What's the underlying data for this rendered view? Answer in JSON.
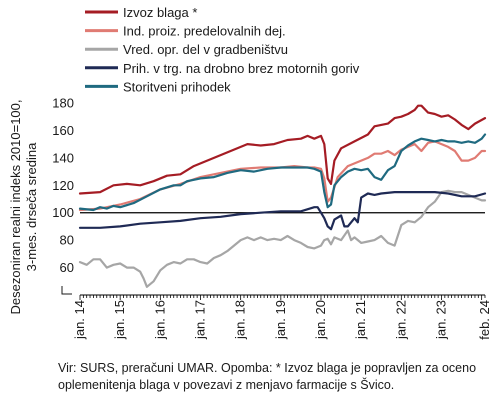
{
  "chart_data": {
    "type": "line",
    "ylabel_lines": [
      "Desezoniran realni indeks 2010=100,",
      "3-mes. drseča sredina"
    ],
    "ylim": [
      40,
      180
    ],
    "yticks": [
      60,
      80,
      100,
      120,
      140,
      160,
      180
    ],
    "y_axis_break": true,
    "reference_line": 100,
    "x_ticks": [
      "jan. 14",
      "jan. 15",
      "jan. 16",
      "jan. 17",
      "jan. 18",
      "jan. 19",
      "jan. 20",
      "jan. 21",
      "jan. 22",
      "jan. 23",
      "feb. 24"
    ],
    "x_tick_months": [
      0,
      12,
      24,
      36,
      48,
      60,
      72,
      84,
      96,
      108,
      121
    ],
    "x_range_months": [
      0,
      121
    ],
    "legend_position": "top",
    "grid": false,
    "series": [
      {
        "name": "Izvoz blaga *",
        "color": "#a51c24",
        "points": [
          [
            0,
            114
          ],
          [
            6,
            115
          ],
          [
            10,
            120
          ],
          [
            14,
            121
          ],
          [
            18,
            120
          ],
          [
            22,
            123
          ],
          [
            26,
            127
          ],
          [
            30,
            128
          ],
          [
            34,
            134
          ],
          [
            38,
            138
          ],
          [
            42,
            142
          ],
          [
            46,
            146
          ],
          [
            50,
            150
          ],
          [
            54,
            149
          ],
          [
            58,
            150
          ],
          [
            62,
            153
          ],
          [
            66,
            154
          ],
          [
            68,
            156
          ],
          [
            70,
            154
          ],
          [
            72,
            156
          ],
          [
            73,
            150
          ],
          [
            74,
            125
          ],
          [
            75,
            121
          ],
          [
            76,
            138
          ],
          [
            78,
            147
          ],
          [
            82,
            152
          ],
          [
            86,
            157
          ],
          [
            88,
            163
          ],
          [
            90,
            164
          ],
          [
            92,
            165
          ],
          [
            94,
            169
          ],
          [
            96,
            170
          ],
          [
            98,
            172
          ],
          [
            100,
            175
          ],
          [
            101,
            178
          ],
          [
            102,
            178
          ],
          [
            104,
            173
          ],
          [
            106,
            172
          ],
          [
            108,
            170
          ],
          [
            110,
            171
          ],
          [
            112,
            168
          ],
          [
            114,
            164
          ],
          [
            116,
            161
          ],
          [
            118,
            165
          ],
          [
            121,
            169
          ]
        ]
      },
      {
        "name": "Ind. proiz. predelovalnih dej.",
        "color": "#e07b73",
        "points": [
          [
            0,
            102
          ],
          [
            6,
            103
          ],
          [
            12,
            106
          ],
          [
            18,
            110
          ],
          [
            24,
            117
          ],
          [
            30,
            121
          ],
          [
            36,
            126
          ],
          [
            42,
            129
          ],
          [
            48,
            132
          ],
          [
            54,
            133
          ],
          [
            60,
            133
          ],
          [
            64,
            134
          ],
          [
            68,
            133
          ],
          [
            70,
            133
          ],
          [
            72,
            132
          ],
          [
            73,
            125
          ],
          [
            74,
            108
          ],
          [
            75,
            111
          ],
          [
            77,
            126
          ],
          [
            80,
            134
          ],
          [
            84,
            138
          ],
          [
            86,
            140
          ],
          [
            88,
            143
          ],
          [
            90,
            143
          ],
          [
            92,
            145
          ],
          [
            94,
            142
          ],
          [
            96,
            146
          ],
          [
            98,
            148
          ],
          [
            100,
            150
          ],
          [
            102,
            145
          ],
          [
            104,
            151
          ],
          [
            106,
            152
          ],
          [
            108,
            150
          ],
          [
            110,
            148
          ],
          [
            112,
            145
          ],
          [
            114,
            138
          ],
          [
            116,
            138
          ],
          [
            118,
            140
          ],
          [
            120,
            145
          ],
          [
            121,
            145
          ]
        ]
      },
      {
        "name": "Vred. opr. del v gradbeništvu",
        "color": "#a6a6a6",
        "points": [
          [
            0,
            64
          ],
          [
            2,
            62
          ],
          [
            4,
            66
          ],
          [
            6,
            66
          ],
          [
            8,
            60
          ],
          [
            10,
            62
          ],
          [
            12,
            63
          ],
          [
            14,
            60
          ],
          [
            16,
            60
          ],
          [
            18,
            57
          ],
          [
            19,
            52
          ],
          [
            20,
            46
          ],
          [
            22,
            50
          ],
          [
            24,
            58
          ],
          [
            26,
            62
          ],
          [
            28,
            64
          ],
          [
            30,
            63
          ],
          [
            32,
            66
          ],
          [
            34,
            66
          ],
          [
            36,
            64
          ],
          [
            38,
            63
          ],
          [
            40,
            67
          ],
          [
            42,
            69
          ],
          [
            44,
            72
          ],
          [
            46,
            76
          ],
          [
            48,
            80
          ],
          [
            50,
            82
          ],
          [
            52,
            80
          ],
          [
            54,
            82
          ],
          [
            56,
            80
          ],
          [
            58,
            81
          ],
          [
            60,
            80
          ],
          [
            62,
            83
          ],
          [
            64,
            80
          ],
          [
            66,
            78
          ],
          [
            68,
            75
          ],
          [
            70,
            74
          ],
          [
            72,
            76
          ],
          [
            73,
            80
          ],
          [
            74,
            81
          ],
          [
            75,
            77
          ],
          [
            76,
            82
          ],
          [
            78,
            80
          ],
          [
            80,
            87
          ],
          [
            81,
            80
          ],
          [
            82,
            82
          ],
          [
            84,
            78
          ],
          [
            86,
            79
          ],
          [
            88,
            80
          ],
          [
            90,
            83
          ],
          [
            92,
            78
          ],
          [
            94,
            76
          ],
          [
            96,
            91
          ],
          [
            98,
            94
          ],
          [
            100,
            93
          ],
          [
            102,
            97
          ],
          [
            104,
            104
          ],
          [
            106,
            108
          ],
          [
            108,
            115
          ],
          [
            110,
            116
          ],
          [
            112,
            115
          ],
          [
            114,
            115
          ],
          [
            116,
            113
          ],
          [
            118,
            111
          ],
          [
            120,
            109
          ],
          [
            121,
            109
          ]
        ]
      },
      {
        "name": "Prih. v trg. na drobno brez motornih goriv",
        "color": "#1f2a55",
        "points": [
          [
            0,
            89
          ],
          [
            6,
            89
          ],
          [
            12,
            90
          ],
          [
            18,
            92
          ],
          [
            24,
            93
          ],
          [
            30,
            94
          ],
          [
            36,
            96
          ],
          [
            42,
            97
          ],
          [
            48,
            99
          ],
          [
            54,
            100
          ],
          [
            60,
            101
          ],
          [
            66,
            101
          ],
          [
            70,
            104
          ],
          [
            71,
            104
          ],
          [
            72,
            100
          ],
          [
            73,
            96
          ],
          [
            74,
            90
          ],
          [
            75,
            88
          ],
          [
            76,
            95
          ],
          [
            78,
            98
          ],
          [
            79,
            90
          ],
          [
            80,
            90
          ],
          [
            82,
            96
          ],
          [
            83,
            93
          ],
          [
            84,
            111
          ],
          [
            86,
            114
          ],
          [
            88,
            113
          ],
          [
            90,
            114
          ],
          [
            94,
            115
          ],
          [
            98,
            115
          ],
          [
            102,
            115
          ],
          [
            106,
            115
          ],
          [
            110,
            114
          ],
          [
            114,
            112
          ],
          [
            118,
            112
          ],
          [
            121,
            114
          ]
        ]
      },
      {
        "name": "Storitveni prihodek",
        "color": "#1f6a80",
        "points": [
          [
            0,
            103
          ],
          [
            4,
            102
          ],
          [
            6,
            104
          ],
          [
            8,
            103
          ],
          [
            10,
            105
          ],
          [
            12,
            104
          ],
          [
            16,
            107
          ],
          [
            20,
            112
          ],
          [
            24,
            117
          ],
          [
            28,
            120
          ],
          [
            30,
            120
          ],
          [
            32,
            123
          ],
          [
            36,
            125
          ],
          [
            40,
            126
          ],
          [
            44,
            129
          ],
          [
            48,
            131
          ],
          [
            52,
            130
          ],
          [
            56,
            132
          ],
          [
            60,
            133
          ],
          [
            64,
            133
          ],
          [
            68,
            133
          ],
          [
            70,
            132
          ],
          [
            72,
            130
          ],
          [
            73,
            115
          ],
          [
            74,
            104
          ],
          [
            75,
            106
          ],
          [
            76,
            120
          ],
          [
            78,
            126
          ],
          [
            80,
            130
          ],
          [
            82,
            132
          ],
          [
            84,
            131
          ],
          [
            86,
            132
          ],
          [
            88,
            126
          ],
          [
            90,
            124
          ],
          [
            92,
            131
          ],
          [
            94,
            134
          ],
          [
            96,
            145
          ],
          [
            98,
            149
          ],
          [
            100,
            152
          ],
          [
            102,
            154
          ],
          [
            104,
            153
          ],
          [
            106,
            152
          ],
          [
            108,
            153
          ],
          [
            110,
            152
          ],
          [
            112,
            152
          ],
          [
            114,
            151
          ],
          [
            116,
            152
          ],
          [
            118,
            151
          ],
          [
            120,
            154
          ],
          [
            121,
            157
          ]
        ]
      }
    ]
  },
  "source_note": "Vir: SURS, preračuni UMAR. Opomba: * Izvoz blaga je popravljen za oceno oplemenitenja blaga v povezavi z menjavo farmacije s Švico."
}
